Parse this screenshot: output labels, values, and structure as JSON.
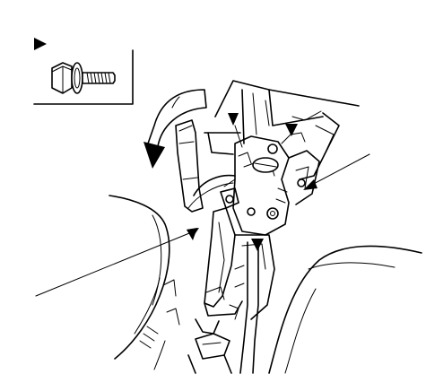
{
  "figure": {
    "background": "#ffffff",
    "line_color": "#000000",
    "legend_box": {
      "symbol": "triangle-marker-icon",
      "item": "flange-bolt-icon"
    },
    "callouts": [
      "leader-line",
      "leader-line",
      "leader-line"
    ],
    "markers": [
      "triangle-marker-icon",
      "triangle-marker-icon",
      "triangle-marker-icon",
      "triangle-marker-icon"
    ],
    "motion_arrow": "curved-arrow-icon"
  }
}
